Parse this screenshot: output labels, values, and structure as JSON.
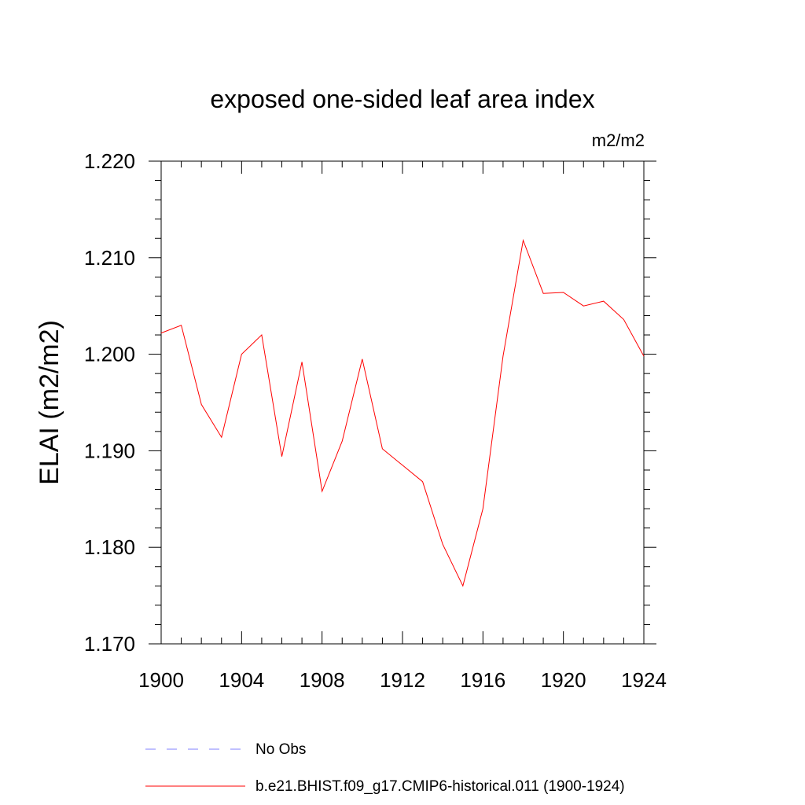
{
  "chart_data": {
    "type": "line",
    "title": "exposed one-sided leaf area index",
    "units_label": "m2/m2",
    "ylabel": "ELAI  (m2/m2)",
    "xlabel": "",
    "xlim": [
      1900,
      1924
    ],
    "ylim": [
      1.17,
      1.22
    ],
    "x_ticks": [
      1900,
      1904,
      1908,
      1912,
      1916,
      1920,
      1924
    ],
    "x_tick_labels": [
      "1900",
      "1904",
      "1908",
      "1912",
      "1916",
      "1920",
      "1924"
    ],
    "y_ticks": [
      1.17,
      1.18,
      1.19,
      1.2,
      1.21,
      1.22
    ],
    "y_tick_labels": [
      "1.170",
      "1.180",
      "1.190",
      "1.200",
      "1.210",
      "1.220"
    ],
    "grid": false,
    "legend_position": "bottom",
    "series": [
      {
        "name": "b.e21.BHIST.f09_g17.CMIP6-historical.011 (1900-1924)",
        "color": "#ff0000",
        "x": [
          1900,
          1901,
          1902,
          1903,
          1904,
          1905,
          1906,
          1907,
          1908,
          1909,
          1910,
          1911,
          1912,
          1913,
          1914,
          1915,
          1916,
          1917,
          1918,
          1919,
          1920,
          1921,
          1922,
          1923,
          1924
        ],
        "y": [
          1.2022,
          1.203,
          1.1948,
          1.1914,
          1.2,
          1.202,
          1.1894,
          1.1992,
          1.1858,
          1.191,
          1.1995,
          1.1902,
          1.1885,
          1.1868,
          1.1803,
          1.176,
          1.184,
          1.1998,
          1.2118,
          1.2063,
          1.2064,
          1.205,
          1.2055,
          1.2036,
          1.1998
        ]
      }
    ],
    "legend_entries": [
      {
        "label": "No Obs",
        "color": "#8080ff",
        "style": "dashed"
      },
      {
        "label": "b.e21.BHIST.f09_g17.CMIP6-historical.011 (1900-1924)",
        "color": "#ff0000",
        "style": "solid"
      }
    ]
  }
}
